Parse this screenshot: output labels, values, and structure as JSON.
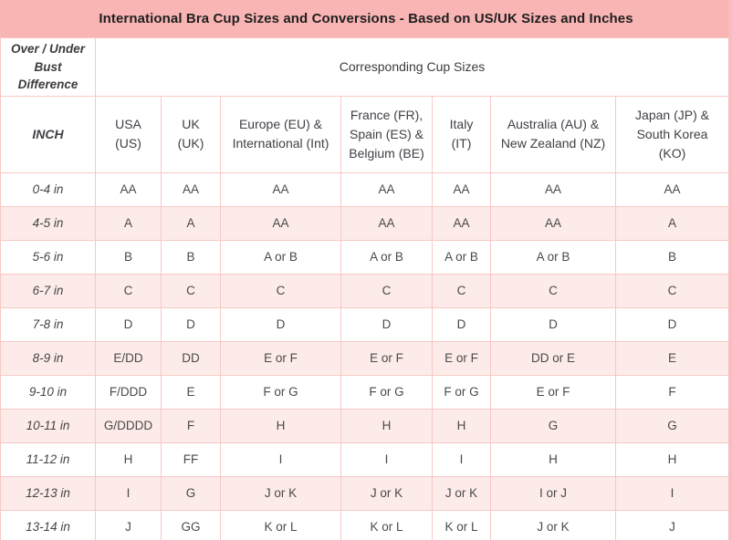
{
  "chart_data": {
    "type": "table",
    "title": "International Bra Cup Sizes and Conversions - Based on US/UK Sizes and Inches",
    "header_group": {
      "left": "Over / Under Bust Difference",
      "right": "Corresponding Cup Sizes"
    },
    "columns": [
      "INCH",
      "USA (US)",
      "UK (UK)",
      "Europe (EU) & International (Int)",
      "France (FR), Spain (ES) & Belgium (BE)",
      "Italy (IT)",
      "Australia (AU) & New Zealand (NZ)",
      "Japan (JP) & South Korea (KO)"
    ],
    "rows": [
      {
        "inch": "0-4 in",
        "values": [
          "AA",
          "AA",
          "AA",
          "AA",
          "AA",
          "AA",
          "AA"
        ]
      },
      {
        "inch": "4-5 in",
        "values": [
          "A",
          "A",
          "AA",
          "AA",
          "AA",
          "AA",
          "A"
        ]
      },
      {
        "inch": "5-6 in",
        "values": [
          "B",
          "B",
          "A or B",
          "A or B",
          "A or B",
          "A or B",
          "B"
        ]
      },
      {
        "inch": "6-7 in",
        "values": [
          "C",
          "C",
          "C",
          "C",
          "C",
          "C",
          "C"
        ]
      },
      {
        "inch": "7-8 in",
        "values": [
          "D",
          "D",
          "D",
          "D",
          "D",
          "D",
          "D"
        ]
      },
      {
        "inch": "8-9 in",
        "values": [
          "E/DD",
          "DD",
          "E or F",
          "E or F",
          "E or F",
          "DD or E",
          "E"
        ]
      },
      {
        "inch": "9-10 in",
        "values": [
          "F/DDD",
          "E",
          "F or G",
          "F or G",
          "F or G",
          "E or F",
          "F"
        ]
      },
      {
        "inch": "10-11 in",
        "values": [
          "G/DDDD",
          "F",
          "H",
          "H",
          "H",
          "G",
          "G"
        ]
      },
      {
        "inch": "11-12 in",
        "values": [
          "H",
          "FF",
          "I",
          "I",
          "I",
          "H",
          "H"
        ]
      },
      {
        "inch": "12-13 in",
        "values": [
          "I",
          "G",
          "J or K",
          "J or K",
          "J or K",
          "I or J",
          "I"
        ]
      },
      {
        "inch": "13-14 in",
        "values": [
          "J",
          "GG",
          "K or L",
          "K or L",
          "K or L",
          "J or K",
          "J"
        ]
      }
    ],
    "layout_hints": {
      "alternating_rows": "white / light pink starting white",
      "grid": true
    }
  },
  "colors": {
    "title_bg": "#f9b4b4",
    "alt_row_bg": "#fcebe8",
    "border": "#f6c9c5",
    "right_strip": "#f9bdbd",
    "title_text": "#1f1f1f",
    "cell_text": "#4a4a4a"
  }
}
